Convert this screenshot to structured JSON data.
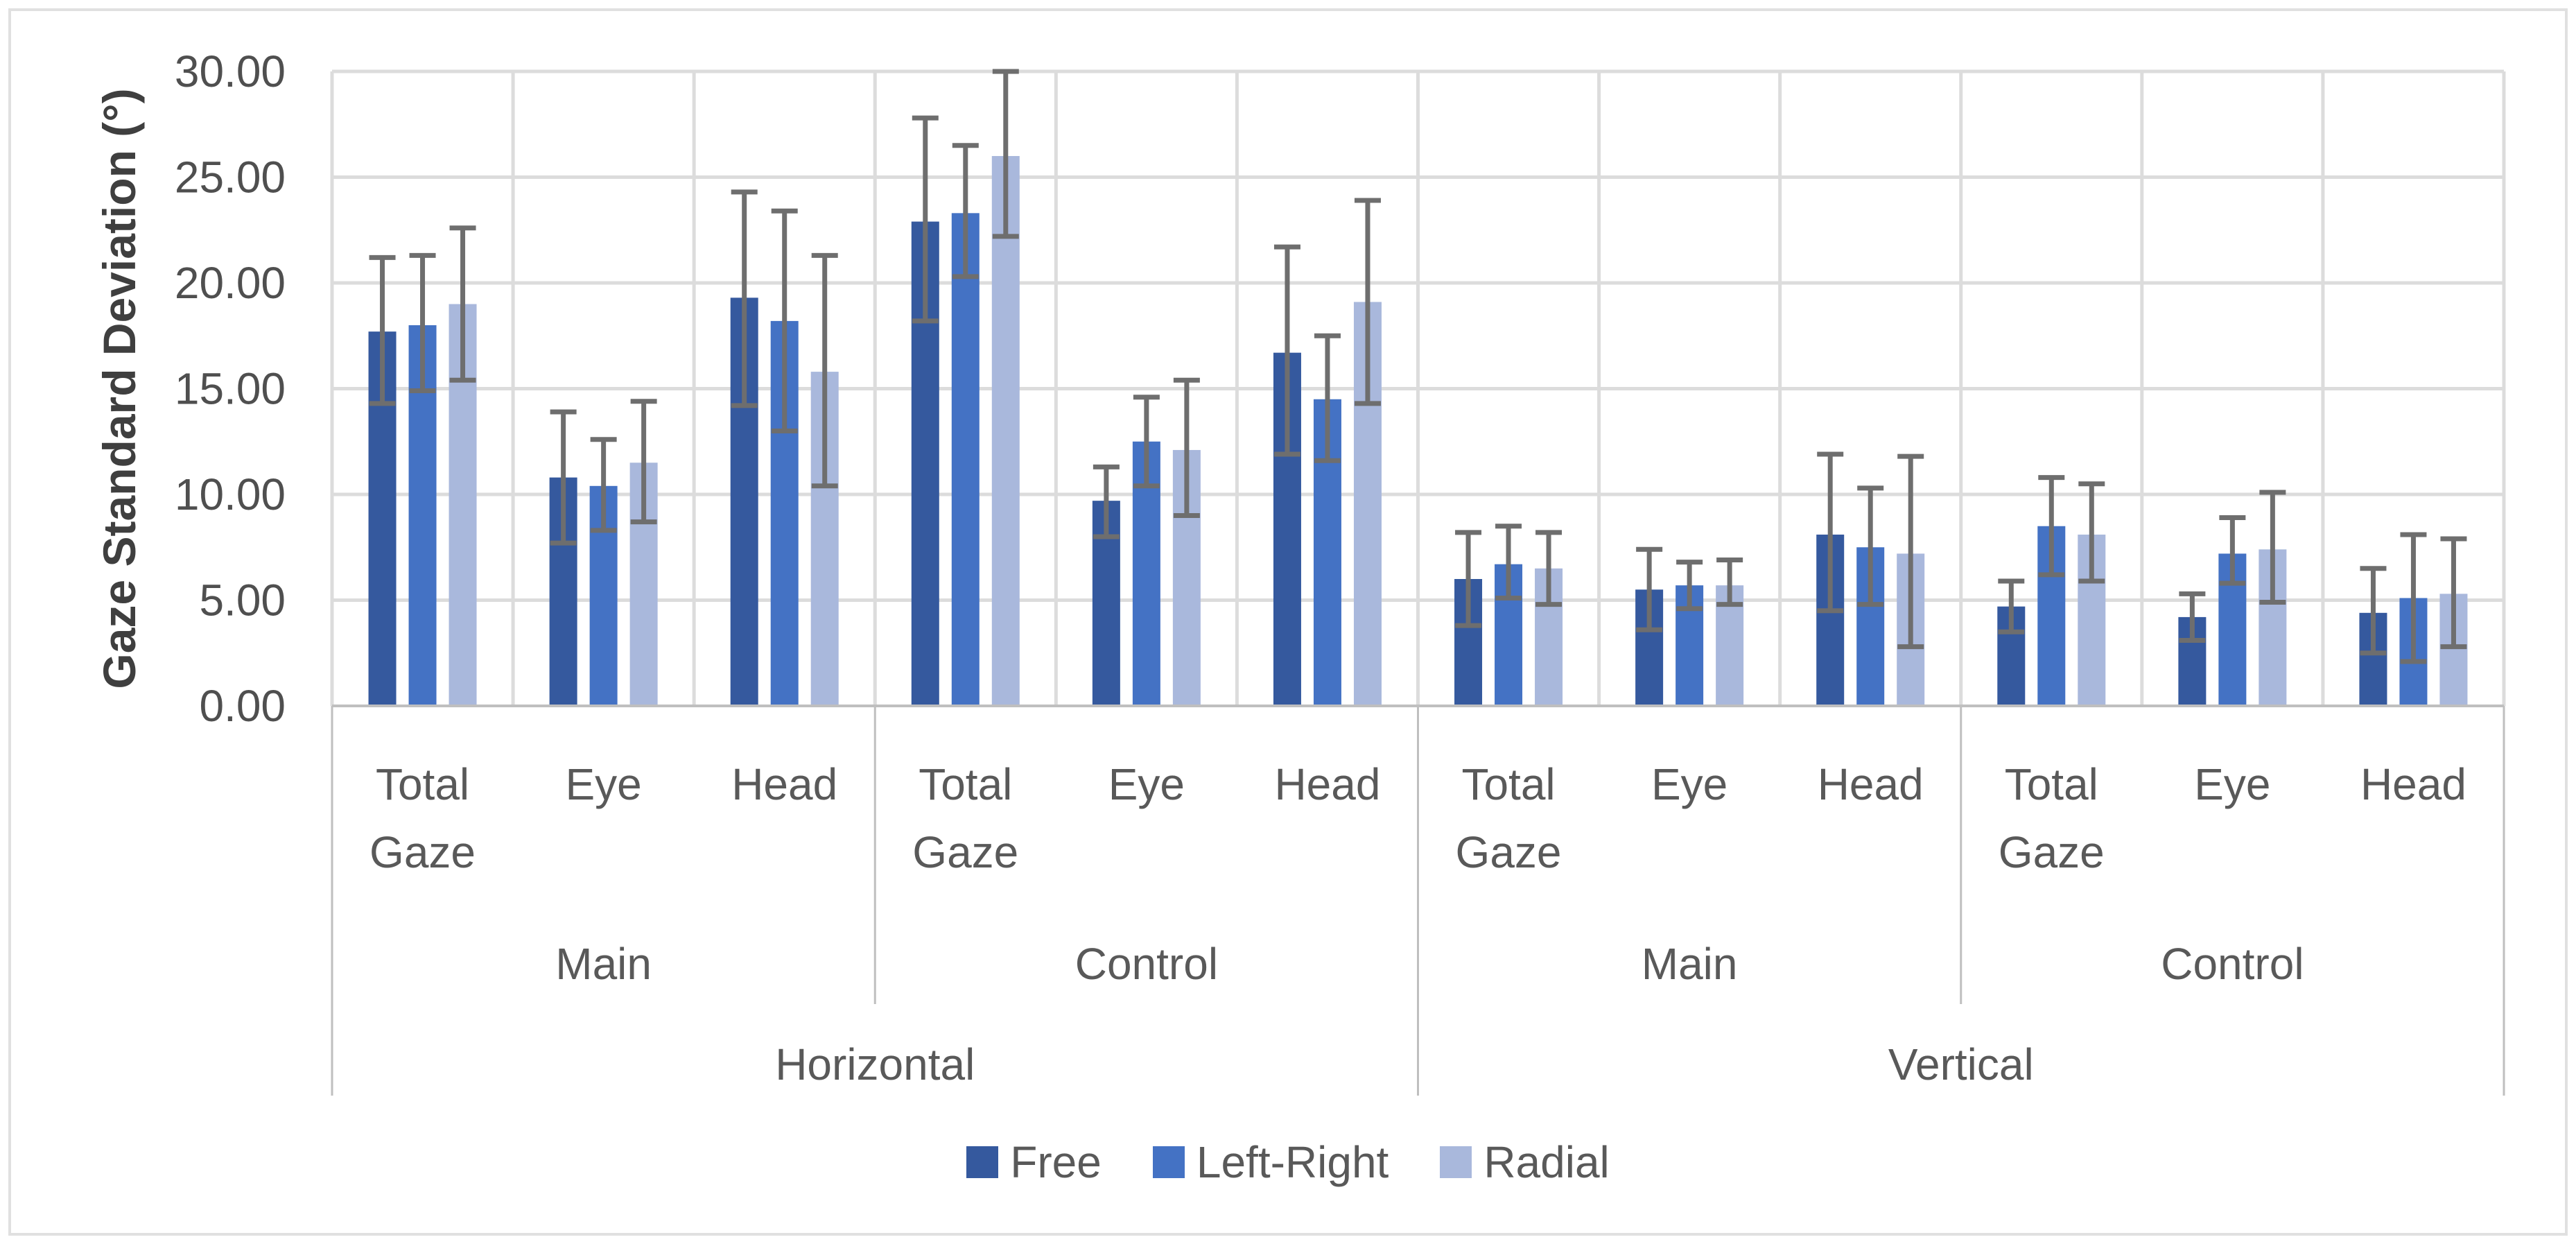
{
  "figure": {
    "background": "#FFFFFF",
    "border_color": "#E0E0E0"
  },
  "chart_data": {
    "type": "bar",
    "title": "",
    "ylabel": "Gaze Standard Deviation (°)",
    "xlabel": "",
    "ylim": [
      0,
      30
    ],
    "yticks": [
      0,
      5,
      10,
      15,
      20,
      25,
      30
    ],
    "ytick_labels": [
      "0.00",
      "5.00",
      "10.00",
      "15.00",
      "20.00",
      "25.00",
      "30.00"
    ],
    "grid": true,
    "legend_position": "bottom-center",
    "x_hierarchy": {
      "level1": [
        {
          "label": "Horizontal",
          "level2": [
            {
              "label": "Main",
              "categories": [
                "Total Gaze",
                "Eye",
                "Head"
              ]
            },
            {
              "label": "Control",
              "categories": [
                "Total Gaze",
                "Eye",
                "Head"
              ]
            }
          ]
        },
        {
          "label": "Vertical",
          "level2": [
            {
              "label": "Main",
              "categories": [
                "Total Gaze",
                "Eye",
                "Head"
              ]
            },
            {
              "label": "Control",
              "categories": [
                "Total Gaze",
                "Eye",
                "Head"
              ]
            }
          ]
        }
      ]
    },
    "slot_order": [
      "Horizontal/Main/Total Gaze",
      "Horizontal/Main/Eye",
      "Horizontal/Main/Head",
      "Horizontal/Control/Total Gaze",
      "Horizontal/Control/Eye",
      "Horizontal/Control/Head",
      "Vertical/Main/Total Gaze",
      "Vertical/Main/Eye",
      "Vertical/Main/Head",
      "Vertical/Control/Total Gaze",
      "Vertical/Control/Eye",
      "Vertical/Control/Head"
    ],
    "series": [
      {
        "name": "Free",
        "color": "#35599E",
        "values": [
          17.7,
          10.8,
          19.3,
          22.9,
          9.7,
          16.7,
          6.0,
          5.5,
          8.1,
          4.7,
          4.2,
          4.4
        ],
        "err_high": [
          21.2,
          13.9,
          24.3,
          27.8,
          11.3,
          21.7,
          8.2,
          7.4,
          11.9,
          5.9,
          5.3,
          6.5
        ],
        "err_low": [
          14.3,
          7.7,
          14.2,
          18.2,
          8.0,
          11.9,
          3.8,
          3.6,
          4.5,
          3.5,
          3.1,
          2.5
        ]
      },
      {
        "name": "Left-Right",
        "color": "#4472C4",
        "values": [
          18.0,
          10.4,
          18.2,
          23.3,
          12.5,
          14.5,
          6.7,
          5.7,
          7.5,
          8.5,
          7.2,
          5.1
        ],
        "err_high": [
          21.3,
          12.6,
          23.4,
          26.5,
          14.6,
          17.5,
          8.5,
          6.8,
          10.3,
          10.8,
          8.9,
          8.1
        ],
        "err_low": [
          14.9,
          8.3,
          13.0,
          20.3,
          10.4,
          11.6,
          5.1,
          4.6,
          4.8,
          6.2,
          5.8,
          2.1
        ]
      },
      {
        "name": "Radial",
        "color": "#A9B8DC",
        "values": [
          19.0,
          11.5,
          15.8,
          26.0,
          12.1,
          19.1,
          6.5,
          5.7,
          7.2,
          8.1,
          7.4,
          5.3
        ],
        "err_high": [
          22.6,
          14.4,
          21.3,
          30.0,
          15.4,
          23.9,
          8.2,
          6.9,
          11.8,
          10.5,
          10.1,
          7.9
        ],
        "err_low": [
          15.4,
          8.7,
          10.4,
          22.2,
          9.0,
          14.3,
          4.8,
          4.8,
          2.8,
          5.9,
          4.9,
          2.8
        ]
      }
    ],
    "style": {
      "error_bar_color": "#6E6E6E",
      "gridline_color": "#DCDCDC",
      "axis_line_color": "#BFBFBF",
      "separator_line_color": "#BFBFBF",
      "tick_text_color": "#4F4F4F",
      "label_text_color": "#595959",
      "axis_title_color": "#3F3F3F"
    }
  }
}
